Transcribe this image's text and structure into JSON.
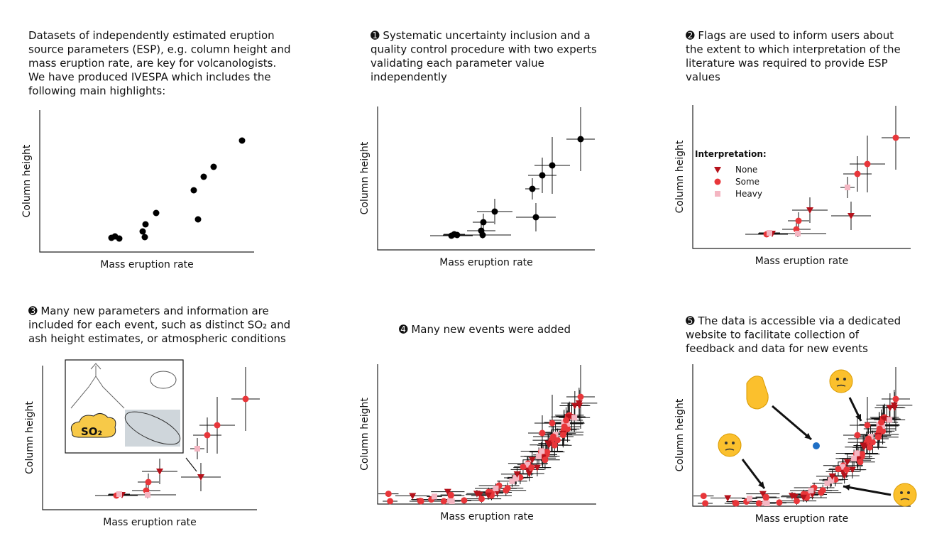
{
  "panels": [
    {
      "caption": [
        "Datasets of independently estimated eruption",
        "source parameters (ESP), e.g. column height and",
        "mass eruption rate, are key for volcanologists.",
        "We have produced IVESPA which includes the",
        "following main highlights:"
      ],
      "x_label": "Mass eruption rate",
      "y_label": "Column height"
    },
    {
      "caption": [
        "➊ Systematic uncertainty inclusion and a",
        "quality control procedure with two experts",
        "validating each parameter value",
        "independently"
      ],
      "x_label": "Mass eruption rate",
      "y_label": "Column height"
    },
    {
      "caption": [
        "➋ Flags are used to inform users about",
        "the extent to which interpretation of the",
        "literature was required to provide ESP",
        "values"
      ],
      "x_label": "Mass eruption rate",
      "y_label": "Column height"
    },
    {
      "caption": [
        "➌ Many new parameters and information are",
        "included for each event, such as distinct SO₂ and",
        "ash height estimates, or atmospheric conditions"
      ],
      "x_label": "Mass eruption rate",
      "y_label": "Column height"
    },
    {
      "caption": [
        "➍ Many new events were added"
      ],
      "x_label": "Mass eruption rate",
      "y_label": "Column height"
    },
    {
      "caption": [
        "➎ The data is accessible via a dedicated",
        "website to facilitate collection of",
        "feedback and data for new events"
      ],
      "x_label": "Mass eruption rate",
      "y_label": "Column height"
    }
  ],
  "legend": {
    "title": "Interpretation:",
    "items": [
      "None",
      "Some",
      "Heavy"
    ]
  },
  "inset": {
    "label": "SO₂"
  }
}
